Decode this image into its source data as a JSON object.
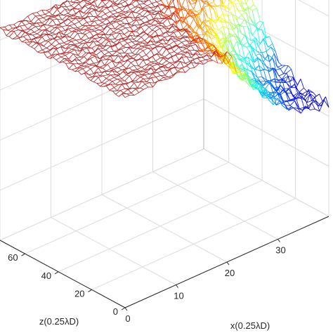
{
  "chart_data": {
    "type": "surface",
    "title": "",
    "xlabel": "x(0.25λD)",
    "zlabel": "z(0.25λD)",
    "ylabel": "",
    "x_ticks": [
      "0",
      "10",
      "20",
      "30"
    ],
    "z_ticks": [
      "0",
      "20",
      "40",
      "60"
    ],
    "xlim": [
      0,
      40
    ],
    "zlim": [
      0,
      75
    ],
    "grid": true,
    "colormap": "jet",
    "plateau_color": "#b51f1f",
    "surface": {
      "x": [
        0,
        5,
        10,
        15,
        20,
        25,
        30,
        35,
        40
      ],
      "z": [
        0,
        10,
        20,
        30,
        40,
        50,
        60,
        70
      ],
      "description_values": "relative height 0-1; high plateau for x < 22, falling off for larger x at low z",
      "rows": [
        [
          1.0,
          1.0,
          1.0,
          1.0,
          0.95,
          0.55,
          0.25,
          0.08,
          0.02
        ],
        [
          1.0,
          1.0,
          1.0,
          1.0,
          0.96,
          0.6,
          0.3,
          0.12,
          0.04
        ],
        [
          1.0,
          1.0,
          1.0,
          1.0,
          0.97,
          0.7,
          0.42,
          0.2,
          0.08
        ],
        [
          1.0,
          1.0,
          1.0,
          1.0,
          0.98,
          0.82,
          0.6,
          0.38,
          0.2
        ],
        [
          1.0,
          1.0,
          1.0,
          1.0,
          1.0,
          0.92,
          0.8,
          0.62,
          0.45
        ],
        [
          1.0,
          1.0,
          1.0,
          1.0,
          1.0,
          0.97,
          0.92,
          0.84,
          0.72
        ],
        [
          1.0,
          1.0,
          1.0,
          1.0,
          1.0,
          1.0,
          0.98,
          0.95,
          0.9
        ],
        [
          1.0,
          1.0,
          1.0,
          1.0,
          1.0,
          1.0,
          1.0,
          1.0,
          0.98
        ]
      ]
    }
  }
}
